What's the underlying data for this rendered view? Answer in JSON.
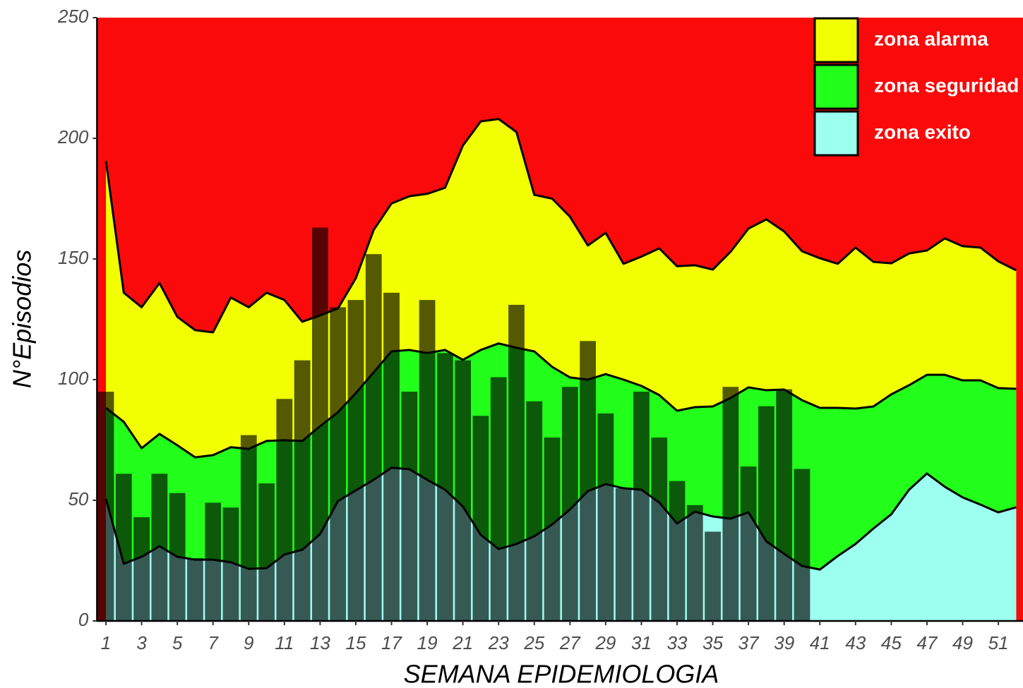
{
  "chart_data": {
    "type": "area",
    "x_label": "SEMANA EPIDEMIOLOGIA",
    "y_label": "N°Episodios",
    "x": [
      1,
      2,
      3,
      4,
      5,
      6,
      7,
      8,
      9,
      10,
      11,
      12,
      13,
      14,
      15,
      16,
      17,
      18,
      19,
      20,
      21,
      22,
      23,
      24,
      25,
      26,
      27,
      28,
      29,
      30,
      31,
      32,
      33,
      34,
      35,
      36,
      37,
      38,
      39,
      40,
      41,
      42,
      43,
      44,
      45,
      46,
      47,
      48,
      49,
      50,
      51,
      52
    ],
    "series": [
      {
        "name": "zona alarma",
        "color": "#f2ff00",
        "values": [
          190.6,
          136,
          130,
          140,
          126,
          120.5,
          119.6,
          134,
          130,
          136,
          133,
          124,
          126.6,
          129.5,
          142,
          162,
          173,
          176,
          177,
          179.5,
          197,
          207,
          208,
          202.6,
          176.6,
          175,
          167.5,
          155.6,
          160.8,
          148,
          151,
          154.4,
          147,
          147.4,
          145.6,
          153,
          162.6,
          166.4,
          161.4,
          153.2,
          150.3,
          148,
          154.7,
          148.8,
          148.2,
          152.3,
          153.5,
          158.5,
          155.3,
          154.7,
          149,
          145.3
        ]
      },
      {
        "name": "zona seguridad",
        "color": "#22ff1a",
        "values": [
          88.3,
          82.5,
          71.6,
          77.5,
          72.8,
          67.8,
          68.7,
          72,
          71.3,
          74.6,
          74.9,
          74.6,
          80.7,
          86.5,
          94.4,
          103,
          111.7,
          112.3,
          111,
          112.3,
          108.2,
          112.3,
          115,
          113.2,
          111.7,
          105.3,
          100.9,
          100,
          102.3,
          100,
          97.4,
          93.6,
          87.1,
          88.6,
          88.9,
          92.4,
          96.8,
          95.6,
          95.9,
          91.5,
          88.3,
          88.3,
          88,
          88.9,
          93.9,
          97.7,
          102,
          102,
          99.7,
          99.7,
          96.5,
          96.2
        ]
      },
      {
        "name": "zona exito",
        "color": "#9dfff0",
        "values": [
          50.6,
          23.7,
          26.6,
          31,
          26.6,
          25.4,
          25.4,
          24.3,
          21.6,
          21.9,
          27.5,
          29.5,
          36,
          49.7,
          54.1,
          58.5,
          63.5,
          62.9,
          58.5,
          54.4,
          47.4,
          35.7,
          29.8,
          31.9,
          35.1,
          40,
          46.2,
          53.8,
          56.7,
          55,
          54.4,
          49.1,
          40.4,
          45.3,
          43.3,
          42.4,
          45,
          33,
          27.8,
          22.8,
          21.3,
          26.9,
          31.9,
          38.3,
          44.2,
          54.4,
          61.1,
          55.6,
          51.2,
          48.2,
          45,
          47.1
        ]
      }
    ],
    "bars": {
      "color": "#000000",
      "opacity": 0.65,
      "x": [
        1,
        2,
        3,
        4,
        5,
        6,
        7,
        8,
        9,
        10,
        11,
        12,
        13,
        14,
        15,
        16,
        17,
        18,
        19,
        20,
        21,
        22,
        23,
        24,
        25,
        26,
        27,
        28,
        29,
        30,
        31,
        32,
        33,
        34,
        35,
        36,
        37,
        38,
        39,
        40
      ],
      "values": [
        95,
        61,
        43,
        61,
        53,
        26,
        49,
        47,
        77,
        57,
        92,
        108,
        163,
        130,
        133,
        152,
        136,
        95,
        133,
        111,
        108,
        85,
        101,
        131,
        91,
        76,
        97,
        116,
        86,
        55,
        95,
        76,
        58,
        48,
        37,
        97,
        64,
        89,
        96,
        63
      ]
    },
    "background_color": "#fa0a0a",
    "line_color": "#000000",
    "xlim": [
      0.5,
      52.5
    ],
    "ylim": [
      0,
      250
    ],
    "xticks": [
      1,
      3,
      5,
      7,
      9,
      11,
      13,
      15,
      17,
      19,
      21,
      23,
      25,
      27,
      29,
      31,
      33,
      35,
      37,
      39,
      41,
      43,
      45,
      47,
      49,
      51
    ],
    "yticks": [
      0,
      50,
      100,
      150,
      200,
      250
    ],
    "legend": "top-right"
  }
}
